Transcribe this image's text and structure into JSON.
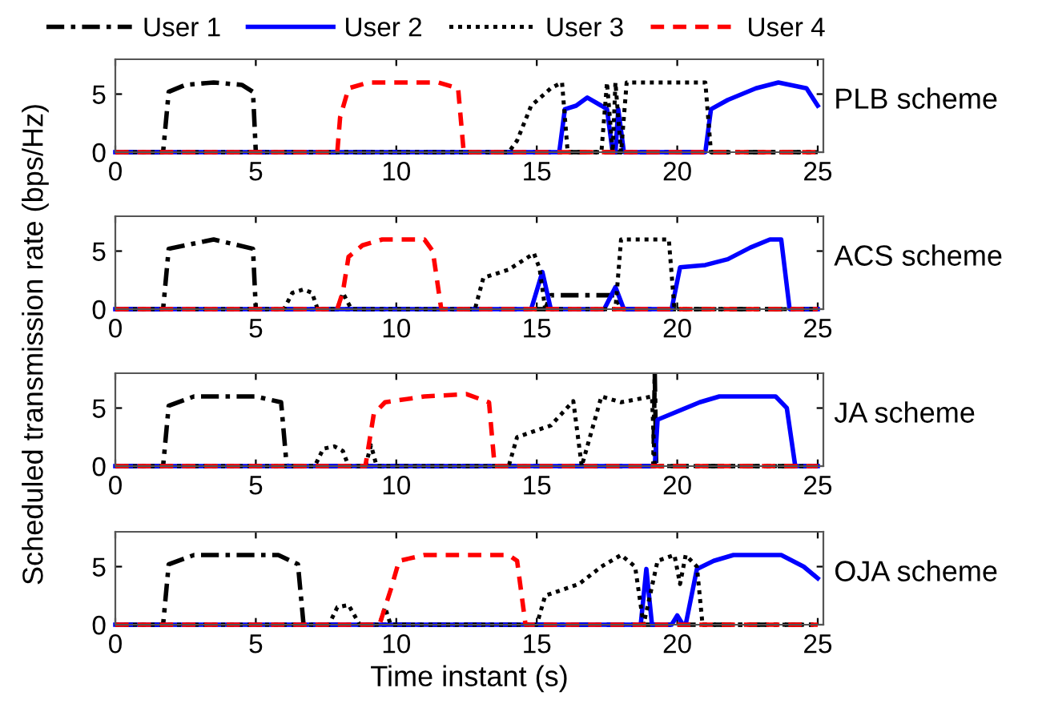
{
  "chart_data": [
    {
      "type": "line",
      "title": "PLB scheme",
      "ylabel": "Scheduled transmission rate (bps/Hz)",
      "legend": "top",
      "xlim": [
        0,
        25.2
      ],
      "ylim": [
        0,
        8
      ],
      "xticks": [
        0,
        5,
        10,
        15,
        20,
        25
      ],
      "yticks": [
        0,
        5
      ],
      "grid": false,
      "series": [
        {
          "name": "User 1",
          "color": "#000000",
          "line_style": "dashdot",
          "x": [
            0,
            1.7,
            1.9,
            2.5,
            3.5,
            4.5,
            4.9,
            5.0,
            25
          ],
          "values": [
            0,
            0,
            5.2,
            5.8,
            6,
            5.8,
            5.2,
            0,
            0
          ]
        },
        {
          "name": "User 2",
          "color": "#0000ff",
          "line_style": "solid",
          "x": [
            0,
            15.8,
            16.0,
            16.4,
            16.8,
            17.3,
            17.5,
            17.7,
            17.8,
            17.9,
            18.1,
            21.0,
            21.2,
            21.8,
            22.8,
            23.6,
            24.6,
            25
          ],
          "values": [
            0,
            0,
            3.7,
            4.0,
            4.7,
            4.0,
            3.7,
            0,
            0,
            3.7,
            0,
            0,
            3.7,
            4.5,
            5.5,
            6,
            5.5,
            4
          ]
        },
        {
          "name": "User 3",
          "color": "#000000",
          "line_style": "dotted",
          "x": [
            0,
            14.0,
            14.3,
            14.8,
            15.5,
            15.9,
            16.1,
            17.3,
            17.5,
            17.7,
            17.8,
            18.0,
            18.2,
            21.0,
            21.2,
            25
          ],
          "values": [
            0,
            0,
            1,
            4,
            5.5,
            6,
            0,
            0,
            6,
            0,
            6,
            0,
            6,
            6,
            0,
            0
          ]
        },
        {
          "name": "User 4",
          "color": "#ff0000",
          "line_style": "dashed",
          "x": [
            0,
            7.9,
            8.0,
            8.3,
            9.0,
            11.5,
            12.2,
            12.4,
            25
          ],
          "values": [
            0,
            0,
            3,
            5.5,
            6,
            6,
            5.5,
            0,
            0
          ]
        }
      ]
    },
    {
      "type": "line",
      "title": "ACS scheme",
      "xlim": [
        0,
        25.2
      ],
      "ylim": [
        0,
        8
      ],
      "xticks": [
        0,
        5,
        10,
        15,
        20,
        25
      ],
      "yticks": [
        0,
        5
      ],
      "grid": false,
      "series": [
        {
          "color": "#000000",
          "line_style": "dashdot",
          "x": [
            0,
            1.7,
            1.9,
            3.5,
            4.9,
            5.0,
            15.3,
            15.5,
            17.8,
            18.0,
            25
          ],
          "values": [
            0,
            0,
            5.2,
            6,
            5.2,
            0,
            0,
            1.2,
            1.2,
            0,
            0
          ]
        },
        {
          "color": "#0000ff",
          "line_style": "solid",
          "x": [
            0,
            14.8,
            15.2,
            15.5,
            17.4,
            17.8,
            18.1,
            19.8,
            20.1,
            21.0,
            21.8,
            22.6,
            23.3,
            23.7,
            24.0,
            25
          ],
          "values": [
            0,
            0,
            3.2,
            0,
            0,
            1.9,
            0,
            0,
            3.6,
            3.8,
            4.3,
            5.3,
            6,
            6,
            0,
            0
          ]
        },
        {
          "color": "#000000",
          "line_style": "dotted",
          "x": [
            0,
            6.0,
            6.3,
            6.7,
            7.0,
            7.2,
            7.9,
            8.1,
            8.4,
            12.8,
            13.1,
            14.0,
            14.9,
            15.1,
            15.3,
            17.8,
            18.0,
            19.7,
            19.9,
            25
          ],
          "values": [
            0,
            0,
            1.4,
            1.7,
            1.4,
            0,
            0,
            1.4,
            0,
            0,
            2.7,
            3.4,
            4.8,
            3.5,
            0,
            0,
            6,
            6,
            0,
            0
          ]
        },
        {
          "color": "#ff0000",
          "line_style": "dashed",
          "x": [
            0,
            7.9,
            8.1,
            8.3,
            8.8,
            9.5,
            11.0,
            11.3,
            11.6,
            25
          ],
          "values": [
            0,
            0,
            1.5,
            4.5,
            5.5,
            6,
            6,
            5,
            0,
            0
          ]
        }
      ]
    },
    {
      "type": "line",
      "title": "JA scheme",
      "xlim": [
        0,
        25.2
      ],
      "ylim": [
        0,
        8
      ],
      "xticks": [
        0,
        5,
        10,
        15,
        20,
        25
      ],
      "yticks": [
        0,
        5
      ],
      "grid": false,
      "series": [
        {
          "color": "#000000",
          "line_style": "dashdot",
          "x": [
            0,
            1.7,
            1.9,
            2.8,
            5.0,
            5.9,
            6.1,
            19.15,
            19.2,
            19.25,
            25
          ],
          "values": [
            0,
            0,
            5.2,
            6,
            6,
            5.5,
            0,
            0,
            8,
            0,
            0
          ]
        },
        {
          "color": "#0000ff",
          "line_style": "solid",
          "x": [
            0,
            19.2,
            19.3,
            20.8,
            21.5,
            23.5,
            23.9,
            24.2,
            25
          ],
          "values": [
            0,
            0,
            4,
            5.5,
            6,
            6,
            5,
            0,
            0
          ]
        },
        {
          "color": "#000000",
          "line_style": "dotted",
          "x": [
            0,
            7.1,
            7.4,
            7.8,
            8.1,
            8.3,
            8.9,
            9.1,
            9.3,
            14.0,
            14.3,
            15.5,
            16.3,
            16.6,
            17.3,
            18.0,
            19.1,
            19.2,
            25
          ],
          "values": [
            0,
            0,
            1.5,
            1.7,
            1.3,
            0,
            0,
            1.8,
            0,
            0,
            2.5,
            3.5,
            5.6,
            0,
            6,
            5.5,
            6,
            0,
            0
          ]
        },
        {
          "color": "#ff0000",
          "line_style": "dashed",
          "x": [
            0,
            8.9,
            9.2,
            9.6,
            11.0,
            12.5,
            13.3,
            13.5,
            25
          ],
          "values": [
            0,
            0,
            4.5,
            5.5,
            6,
            6.2,
            5.5,
            0,
            0
          ]
        }
      ]
    },
    {
      "type": "line",
      "title": "OJA scheme",
      "xlabel": "Time instant (s)",
      "xlim": [
        0,
        25.2
      ],
      "ylim": [
        0,
        8
      ],
      "xticks": [
        0,
        5,
        10,
        15,
        20,
        25
      ],
      "yticks": [
        0,
        5
      ],
      "grid": false,
      "series": [
        {
          "color": "#000000",
          "line_style": "dashdot",
          "x": [
            0,
            1.7,
            1.9,
            2.8,
            5.8,
            6.5,
            6.7,
            25
          ],
          "values": [
            0,
            0,
            5.2,
            6,
            6,
            5.2,
            0,
            0
          ]
        },
        {
          "color": "#0000ff",
          "line_style": "solid",
          "x": [
            0,
            18.7,
            18.9,
            19.1,
            19.8,
            20.0,
            20.2,
            20.3,
            20.7,
            21.3,
            22.0,
            23.7,
            24.5,
            25
          ],
          "values": [
            0,
            0,
            4.8,
            0,
            0,
            0.8,
            0,
            0,
            4.8,
            5.5,
            6,
            6,
            5,
            4
          ]
        },
        {
          "color": "#000000",
          "line_style": "dotted",
          "x": [
            0,
            7.6,
            7.9,
            8.3,
            8.7,
            9.4,
            9.6,
            9.8,
            15.0,
            15.3,
            16.5,
            17.3,
            18.0,
            18.5,
            18.8,
            19.3,
            19.9,
            20.1,
            20.3,
            20.7,
            20.9,
            25
          ],
          "values": [
            0,
            0,
            1.5,
            1.7,
            0,
            0,
            1.5,
            0,
            0,
            2.5,
            3.5,
            5,
            6,
            5,
            0,
            5.5,
            6,
            3.5,
            6,
            5,
            0,
            0
          ]
        },
        {
          "color": "#ff0000",
          "line_style": "dashed",
          "x": [
            0,
            9.4,
            9.8,
            10.1,
            11.0,
            14.0,
            14.3,
            14.6,
            25
          ],
          "values": [
            0,
            0,
            3,
            5.5,
            6,
            6,
            5.5,
            0,
            0
          ]
        }
      ]
    }
  ]
}
